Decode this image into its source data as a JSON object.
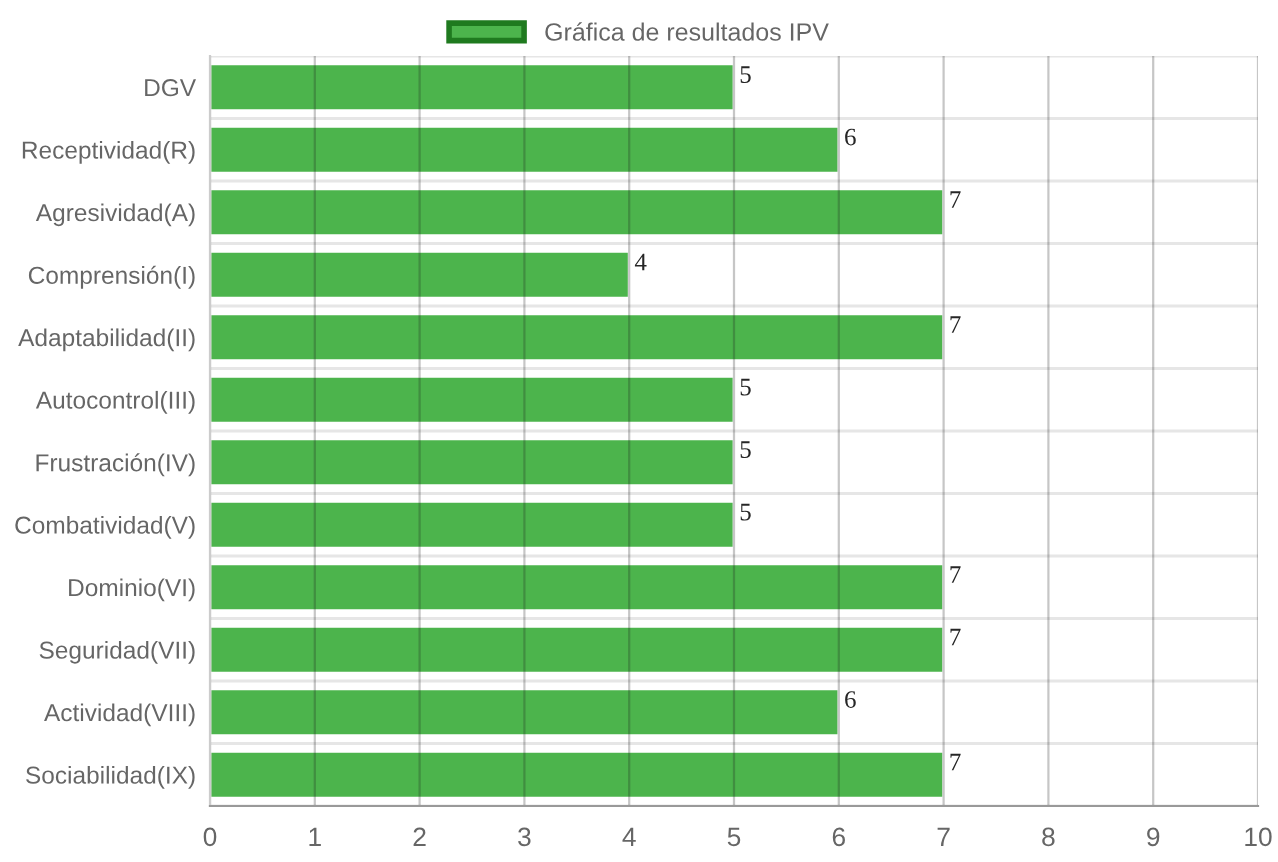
{
  "chart_data": {
    "type": "bar",
    "orientation": "horizontal",
    "legend": "top",
    "categories": [
      "DGV",
      "Receptividad(R)",
      "Agresividad(A)",
      "Comprensión(I)",
      "Adaptabilidad(II)",
      "Autocontrol(III)",
      "Frustración(IV)",
      "Combatividad(V)",
      "Dominio(VI)",
      "Seguridad(VII)",
      "Actividad(VIII)",
      "Sociabilidad(IX)"
    ],
    "series": [
      {
        "name": "Gráfica de resultados IPV",
        "color": "#4cb44c",
        "values": [
          5,
          6,
          7,
          4,
          7,
          5,
          5,
          5,
          7,
          7,
          6,
          7
        ]
      }
    ],
    "xlim": [
      0,
      10
    ],
    "xticks": [
      0,
      1,
      2,
      3,
      4,
      5,
      6,
      7,
      8,
      9,
      10
    ],
    "grid": true,
    "data_labels": true
  }
}
